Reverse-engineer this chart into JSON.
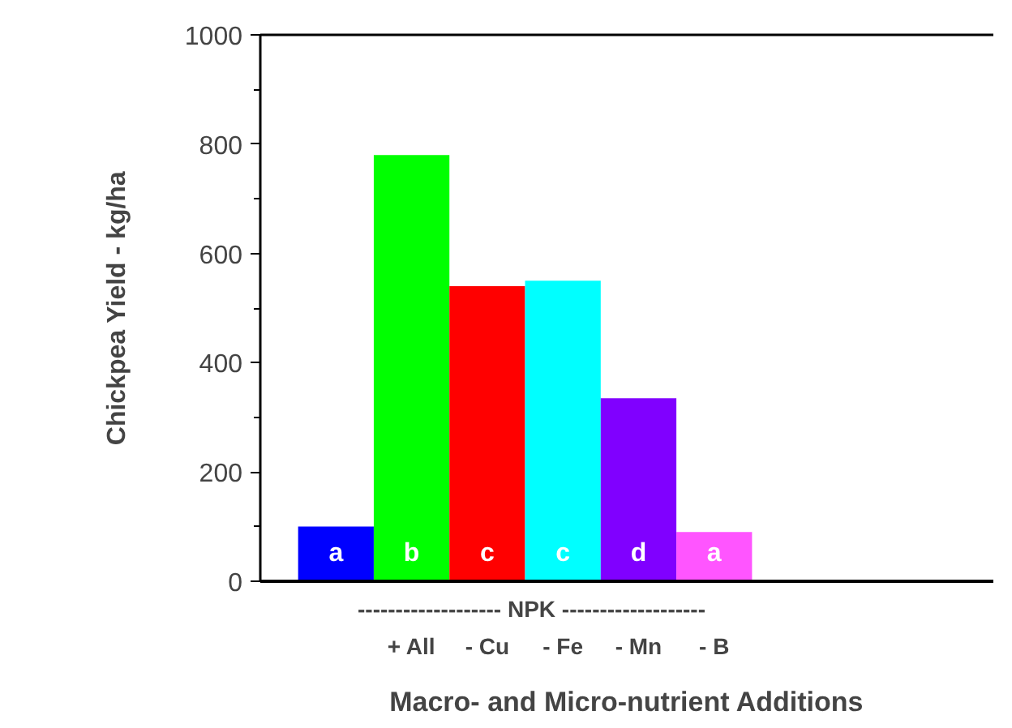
{
  "chart_data": {
    "type": "bar",
    "xlabel": "Macro- and Micro-nutrient Additions",
    "ylabel": "Chickpea Yield - kg/ha",
    "categories": [
      null,
      "+ All",
      "- Cu",
      "- Fe",
      "- Mn",
      "- B"
    ],
    "values": [
      100,
      780,
      540,
      550,
      335,
      90
    ],
    "colors": [
      "#0000ff",
      "#00ff00",
      "#ff0000",
      "#00ffff",
      "#8000ff",
      "#ff55ff"
    ],
    "value_labels": [
      "a",
      "b",
      "c",
      "c",
      "d",
      "a"
    ],
    "annotations": [
      "------------------- NPK -------------------"
    ],
    "ylim": [
      0,
      1000
    ],
    "yticks": [
      0,
      200,
      400,
      600,
      800,
      1000
    ],
    "grid": false
  }
}
